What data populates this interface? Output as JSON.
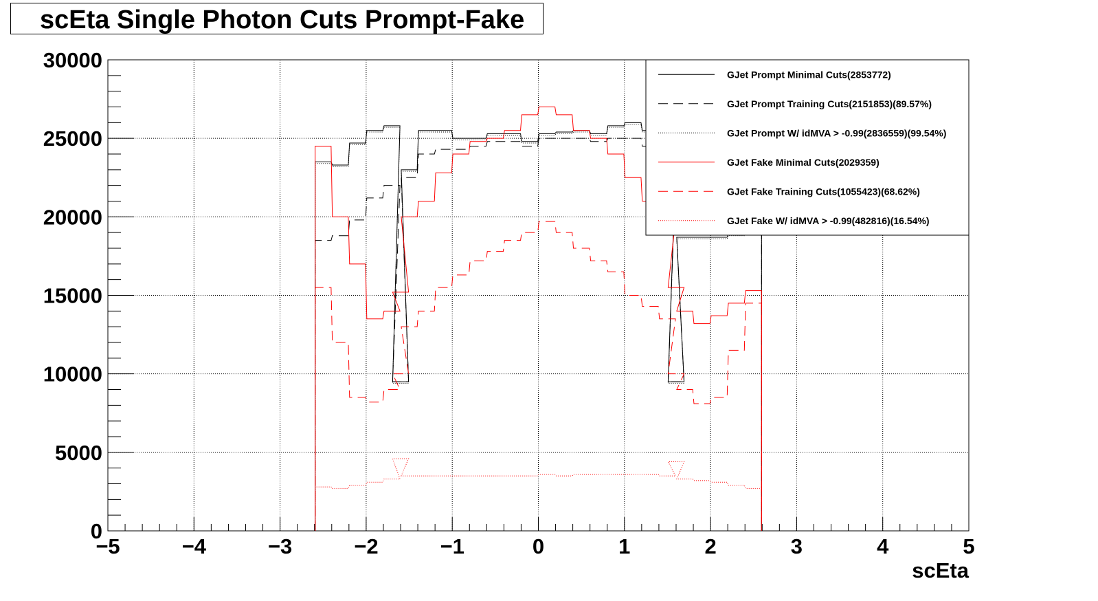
{
  "chart_data": {
    "type": "line",
    "title": "scEta Single Photon Cuts Prompt-Fake",
    "xlabel": "scEta",
    "ylabel": "",
    "xlim": [
      -5,
      5
    ],
    "ylim": [
      0,
      30000
    ],
    "x_ticks": [
      "−5",
      "−4",
      "−3",
      "−2",
      "−1",
      "0",
      "1",
      "2",
      "3",
      "4",
      "5"
    ],
    "y_ticks": [
      "0",
      "5000",
      "10000",
      "15000",
      "20000",
      "25000",
      "30000"
    ],
    "grid": true,
    "legend_position": "top-right",
    "x": [
      -2.5,
      -2.3,
      -2.1,
      -1.9,
      -1.7,
      -1.6,
      -1.5,
      -1.3,
      -1.1,
      -0.9,
      -0.7,
      -0.5,
      -0.3,
      -0.1,
      0.1,
      0.3,
      0.5,
      0.7,
      0.9,
      1.1,
      1.3,
      1.5,
      1.6,
      1.7,
      1.9,
      2.1,
      2.3,
      2.5
    ],
    "series": [
      {
        "name": "GJet Prompt Minimal Cuts(2853772)",
        "color": "#000000",
        "style": "solid",
        "values": [
          23500,
          23300,
          24700,
          25500,
          25800,
          9500,
          23000,
          25500,
          25500,
          25000,
          25000,
          25300,
          25300,
          24800,
          25300,
          25400,
          25500,
          25300,
          25800,
          26000,
          25500,
          23000,
          9500,
          18700,
          18700,
          18700,
          18900,
          19000
        ]
      },
      {
        "name": "GJet Prompt Training Cuts(2151853)(89.57%)",
        "color": "#000000",
        "style": "dashed",
        "values": [
          18500,
          18800,
          19800,
          21200,
          22000,
          9500,
          22500,
          24000,
          24300,
          24300,
          24500,
          24800,
          24800,
          24500,
          25000,
          25000,
          25000,
          24800,
          25000,
          25000,
          24500,
          22500,
          9500,
          18700,
          18700,
          18700,
          18900,
          19000
        ]
      },
      {
        "name": "GJet Prompt W/ idMVA > -0.99(2836559)(99.54%)",
        "color": "#000000",
        "style": "dotted",
        "values": [
          23400,
          23200,
          24600,
          25400,
          25700,
          9400,
          22900,
          25400,
          25400,
          24900,
          24900,
          25200,
          25200,
          24700,
          25200,
          25300,
          25400,
          25200,
          25700,
          25900,
          25400,
          22900,
          9400,
          18600,
          18600,
          18600,
          18800,
          18900
        ]
      },
      {
        "name": "GJet Fake Minimal Cuts(2029359)",
        "color": "#ff0000",
        "style": "solid",
        "values": [
          24500,
          20000,
          17000,
          13500,
          14000,
          15200,
          20000,
          21000,
          22800,
          24000,
          24800,
          25000,
          25500,
          26500,
          27000,
          26500,
          25500,
          25000,
          24000,
          22500,
          21000,
          19800,
          15500,
          14000,
          13200,
          13700,
          14500,
          15300
        ]
      },
      {
        "name": "GJet Fake Training Cuts(1055423)(68.62%)",
        "color": "#ff0000",
        "style": "dashed",
        "values": [
          15500,
          12000,
          8500,
          8200,
          9000,
          10000,
          13000,
          14000,
          15500,
          16300,
          17200,
          17800,
          18500,
          19000,
          19700,
          19000,
          18000,
          17200,
          16500,
          15000,
          14300,
          13500,
          10000,
          9000,
          8100,
          8500,
          11500,
          14500
        ]
      },
      {
        "name": "GJet Fake W/ idMVA > -0.99(482816)(16.54%)",
        "color": "#ff0000",
        "style": "dotted",
        "values": [
          2800,
          2700,
          2900,
          3100,
          3300,
          4600,
          3500,
          3500,
          3500,
          3500,
          3500,
          3500,
          3500,
          3500,
          3600,
          3500,
          3600,
          3600,
          3600,
          3600,
          3600,
          3500,
          4400,
          3300,
          3200,
          3100,
          2900,
          2700
        ]
      }
    ]
  }
}
